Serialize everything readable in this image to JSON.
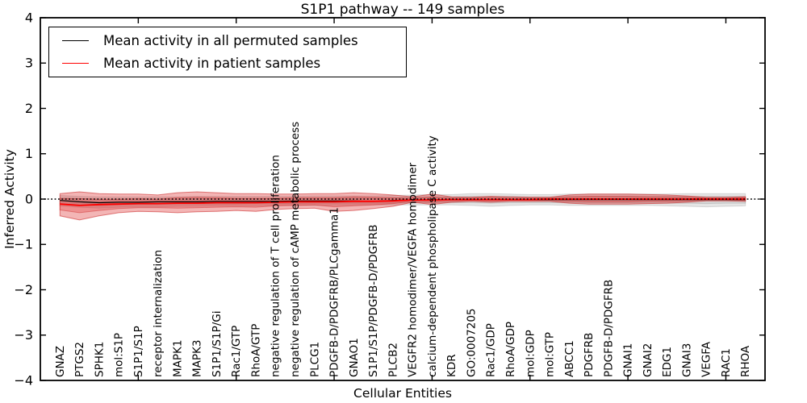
{
  "chart_data": {
    "type": "line",
    "title": "S1P1 pathway -- 149 samples",
    "xlabel": "Cellular Entities",
    "ylabel": "Inferred Activity",
    "ylim": [
      -4,
      4
    ],
    "yticks": [
      -4,
      -3,
      -2,
      -1,
      0,
      1,
      2,
      3,
      4
    ],
    "x_major_tick_step": 5,
    "zero_line": "dotted",
    "grid": false,
    "legend_position": "upper left",
    "categories": [
      "GNAZ",
      "PTGS2",
      "SPHK1",
      "mol:S1P",
      "S1P1/S1P",
      "receptor internalization",
      "MAPK1",
      "MAPK3",
      "S1P1/S1P/Gi",
      "Rac1/GTP",
      "RhoA/GTP",
      "negative regulation of T cell proliferation",
      "negative regulation of cAMP metabolic process",
      "PLCG1",
      "PDGFB-D/PDGFRB/PLCgamma1",
      "GNAO1",
      "S1P1/S1P/PDGFB-D/PDGFRB",
      "PLCB2",
      "VEGFR2 homodimer/VEGFA homodimer",
      "calcium-dependent phospholipase C activity",
      "KDR",
      "GO:0007205",
      "Rac1/GDP",
      "RhoA/GDP",
      "mol:GDP",
      "mol:GTP",
      "ABCC1",
      "PDGFRB",
      "PDGFB-D/PDGFRB",
      "GNAI1",
      "GNAI2",
      "EDG1",
      "GNAI3",
      "VEGFA",
      "RAC1",
      "RHOA"
    ],
    "series": [
      {
        "id": "permuted",
        "name": "Mean activity in all permuted samples",
        "color": "#000000",
        "width": 1.2,
        "values": [
          -0.03,
          -0.06,
          -0.08,
          -0.07,
          -0.07,
          -0.06,
          -0.06,
          -0.06,
          -0.05,
          -0.05,
          -0.05,
          -0.05,
          -0.04,
          -0.04,
          -0.04,
          -0.04,
          -0.05,
          -0.03,
          -0.02,
          -0.02,
          -0.01,
          -0.01,
          -0.01,
          -0.01,
          -0.01,
          -0.01,
          -0.01,
          -0.01,
          -0.01,
          -0.01,
          -0.01,
          -0.01,
          -0.01,
          -0.01,
          -0.01,
          -0.01
        ]
      },
      {
        "id": "patient",
        "name": "Mean activity in patient samples",
        "color": "#ff0000",
        "width": 1.8,
        "values": [
          -0.11,
          -0.14,
          -0.12,
          -0.11,
          -0.1,
          -0.1,
          -0.09,
          -0.09,
          -0.08,
          -0.08,
          -0.08,
          -0.07,
          -0.06,
          -0.06,
          -0.06,
          -0.05,
          -0.05,
          -0.04,
          -0.02,
          -0.02,
          -0.01,
          -0.01,
          -0.01,
          -0.01,
          -0.01,
          0,
          0,
          0,
          0,
          0,
          0,
          0,
          0,
          0,
          0,
          0
        ]
      }
    ],
    "bands": [
      {
        "name": "permuted-outer",
        "fill": "rgba(0,0,0,0.10)",
        "edge": "rgba(0,0,0,0.12)",
        "upper": [
          0.08,
          0.06,
          0.05,
          0.05,
          0.05,
          0.05,
          0.05,
          0.06,
          0.06,
          0.06,
          0.06,
          0.06,
          0.06,
          0.07,
          0.07,
          0.07,
          0.07,
          0.08,
          0.09,
          0.1,
          0.1,
          0.12,
          0.12,
          0.11,
          0.1,
          0.1,
          0.11,
          0.11,
          0.11,
          0.11,
          0.11,
          0.11,
          0.12,
          0.12,
          0.12,
          0.12
        ],
        "lower": [
          -0.15,
          -0.18,
          -0.2,
          -0.18,
          -0.17,
          -0.17,
          -0.16,
          -0.16,
          -0.15,
          -0.15,
          -0.15,
          -0.14,
          -0.14,
          -0.14,
          -0.14,
          -0.13,
          -0.13,
          -0.13,
          -0.13,
          -0.13,
          -0.13,
          -0.14,
          -0.16,
          -0.14,
          -0.13,
          -0.13,
          -0.14,
          -0.14,
          -0.14,
          -0.14,
          -0.14,
          -0.15,
          -0.16,
          -0.17,
          -0.16,
          -0.15
        ]
      },
      {
        "name": "permuted-inner",
        "fill": "rgba(0,0,0,0.07)",
        "edge": "rgba(0,0,0,0.10)",
        "upper": [
          0.03,
          0.01,
          -0.01,
          -0.01,
          -0.01,
          0,
          0,
          0.01,
          0.01,
          0.01,
          0.01,
          0.01,
          0.02,
          0.02,
          0.02,
          0.02,
          0.02,
          0.03,
          0.04,
          0.05,
          0.05,
          0.06,
          0.06,
          0.06,
          0.05,
          0.05,
          0.06,
          0.06,
          0.06,
          0.06,
          0.06,
          0.06,
          0.06,
          0.06,
          0.06,
          0.06
        ],
        "lower": [
          -0.1,
          -0.13,
          -0.15,
          -0.13,
          -0.12,
          -0.12,
          -0.11,
          -0.11,
          -0.11,
          -0.11,
          -0.1,
          -0.1,
          -0.1,
          -0.09,
          -0.09,
          -0.09,
          -0.09,
          -0.09,
          -0.08,
          -0.08,
          -0.08,
          -0.08,
          -0.09,
          -0.08,
          -0.08,
          -0.08,
          -0.08,
          -0.08,
          -0.08,
          -0.08,
          -0.08,
          -0.09,
          -0.09,
          -0.1,
          -0.09,
          -0.09
        ]
      },
      {
        "name": "patient-outer",
        "fill": "rgba(220,30,30,0.33)",
        "edge": "rgba(200,30,30,0.55)",
        "upper": [
          0.12,
          0.16,
          0.12,
          0.11,
          0.11,
          0.09,
          0.14,
          0.16,
          0.14,
          0.12,
          0.12,
          0.11,
          0.11,
          0.12,
          0.12,
          0.14,
          0.12,
          0.09,
          0.05,
          0.11,
          0.05,
          0.04,
          0.06,
          0.05,
          0.04,
          0.04,
          0.09,
          0.11,
          0.11,
          0.11,
          0.1,
          0.09,
          0.07,
          0.04,
          0.04,
          0.05
        ],
        "lower": [
          -0.37,
          -0.46,
          -0.37,
          -0.3,
          -0.27,
          -0.28,
          -0.3,
          -0.28,
          -0.27,
          -0.25,
          -0.27,
          -0.23,
          -0.21,
          -0.2,
          -0.27,
          -0.25,
          -0.21,
          -0.16,
          -0.07,
          -0.12,
          -0.07,
          -0.05,
          -0.07,
          -0.05,
          -0.05,
          -0.05,
          -0.09,
          -0.11,
          -0.11,
          -0.11,
          -0.1,
          -0.09,
          -0.07,
          -0.04,
          -0.04,
          -0.05
        ]
      },
      {
        "name": "patient-inner",
        "fill": "rgba(220,30,30,0.25)",
        "edge": "rgba(200,30,30,0.40)",
        "upper": [
          0.01,
          0.01,
          0.0,
          0.0,
          0.01,
          0.0,
          0.03,
          0.04,
          0.03,
          0.02,
          0.02,
          0.02,
          0.03,
          0.03,
          0.03,
          0.05,
          0.04,
          0.03,
          0.02,
          0.05,
          0.02,
          0.02,
          0.03,
          0.02,
          0.02,
          0.02,
          0.05,
          0.06,
          0.06,
          0.06,
          0.05,
          0.05,
          0.04,
          0.02,
          0.02,
          0.03
        ],
        "lower": [
          -0.24,
          -0.3,
          -0.25,
          -0.21,
          -0.19,
          -0.19,
          -0.2,
          -0.19,
          -0.18,
          -0.17,
          -0.18,
          -0.15,
          -0.14,
          -0.13,
          -0.17,
          -0.15,
          -0.13,
          -0.1,
          -0.05,
          -0.07,
          -0.04,
          -0.03,
          -0.04,
          -0.03,
          -0.03,
          -0.03,
          -0.05,
          -0.06,
          -0.06,
          -0.06,
          -0.05,
          -0.05,
          -0.04,
          -0.02,
          -0.02,
          -0.03
        ]
      }
    ],
    "style": {
      "background": "#ffffff",
      "frame_color": "#000000",
      "zero_line_color": "#000000"
    }
  }
}
